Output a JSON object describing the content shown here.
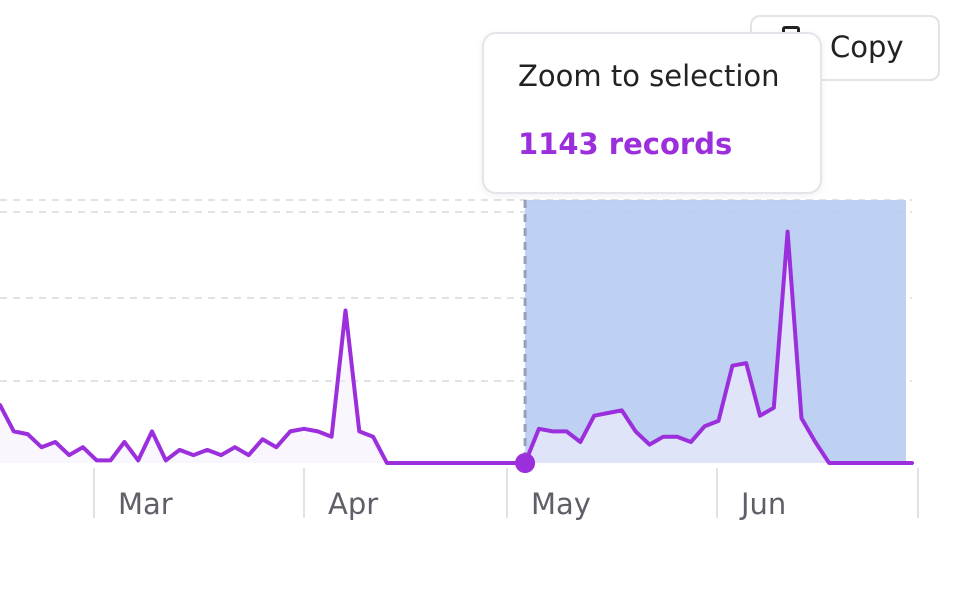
{
  "toolbar": {
    "copy_label": "Copy",
    "copy_icon": "copy-icon"
  },
  "tooltip": {
    "title": "Zoom to selection",
    "records": "1143 records"
  },
  "colors": {
    "series": "#9b2fdb",
    "area_fill": "#f6f0fd",
    "selection": "#b9cdf2",
    "grid": "#e2e2e6",
    "tick_text": "#5f5f6a"
  },
  "chart_data": {
    "type": "line",
    "x_tick_labels": [
      "Mar",
      "Apr",
      "May",
      "Jun"
    ],
    "grid": "horizontal dashed",
    "series": [
      {
        "x": [
          "Feb 18",
          "Feb 20",
          "Feb 22",
          "Feb 24",
          "Feb 26",
          "Feb 28",
          "Mar 1",
          "Mar 3",
          "Mar 5",
          "Mar 7",
          "Mar 9",
          "Mar 11",
          "Mar 13",
          "Mar 15",
          "Mar 17",
          "Mar 19",
          "Mar 21",
          "Mar 23",
          "Mar 25",
          "Mar 27",
          "Mar 29",
          "Mar 31",
          "Apr 2",
          "Apr 4",
          "Apr 6",
          "Apr 8",
          "Apr 10",
          "Apr 12",
          "Apr 14",
          "Apr 16",
          "Apr 18",
          "Apr 20",
          "Apr 22",
          "Apr 24",
          "Apr 26",
          "Apr 28",
          "Apr 30",
          "May 2",
          "May 4",
          "May 6",
          "May 8",
          "May 10",
          "May 12",
          "May 14",
          "May 16",
          "May 18",
          "May 20",
          "May 22",
          "May 24",
          "May 26",
          "May 28",
          "May 30",
          "Jun 1",
          "Jun 3",
          "Jun 5",
          "Jun 7",
          "Jun 9",
          "Jun 11",
          "Jun 13",
          "Jun 15",
          "Jun 17",
          "Jun 19",
          "Jun 21",
          "Jun 23",
          "Jun 25",
          "Jun 27",
          "Jun 29"
        ],
        "values": [
          22,
          12,
          11,
          6,
          8,
          3,
          6,
          1,
          1,
          8,
          1,
          12,
          1,
          5,
          3,
          5,
          3,
          6,
          3,
          9,
          6,
          12,
          13,
          12,
          10,
          58,
          12,
          10,
          0,
          0,
          0,
          0,
          0,
          0,
          0,
          0,
          0,
          0,
          0,
          13,
          12,
          12,
          8,
          18,
          19,
          20,
          12,
          7,
          10,
          10,
          8,
          14,
          16,
          37,
          38,
          18,
          21,
          88,
          17,
          8,
          0,
          0,
          0,
          0,
          0,
          0,
          0
        ]
      }
    ],
    "selection": {
      "from": "May 4",
      "to": "Jun 29",
      "records": 1143
    }
  }
}
